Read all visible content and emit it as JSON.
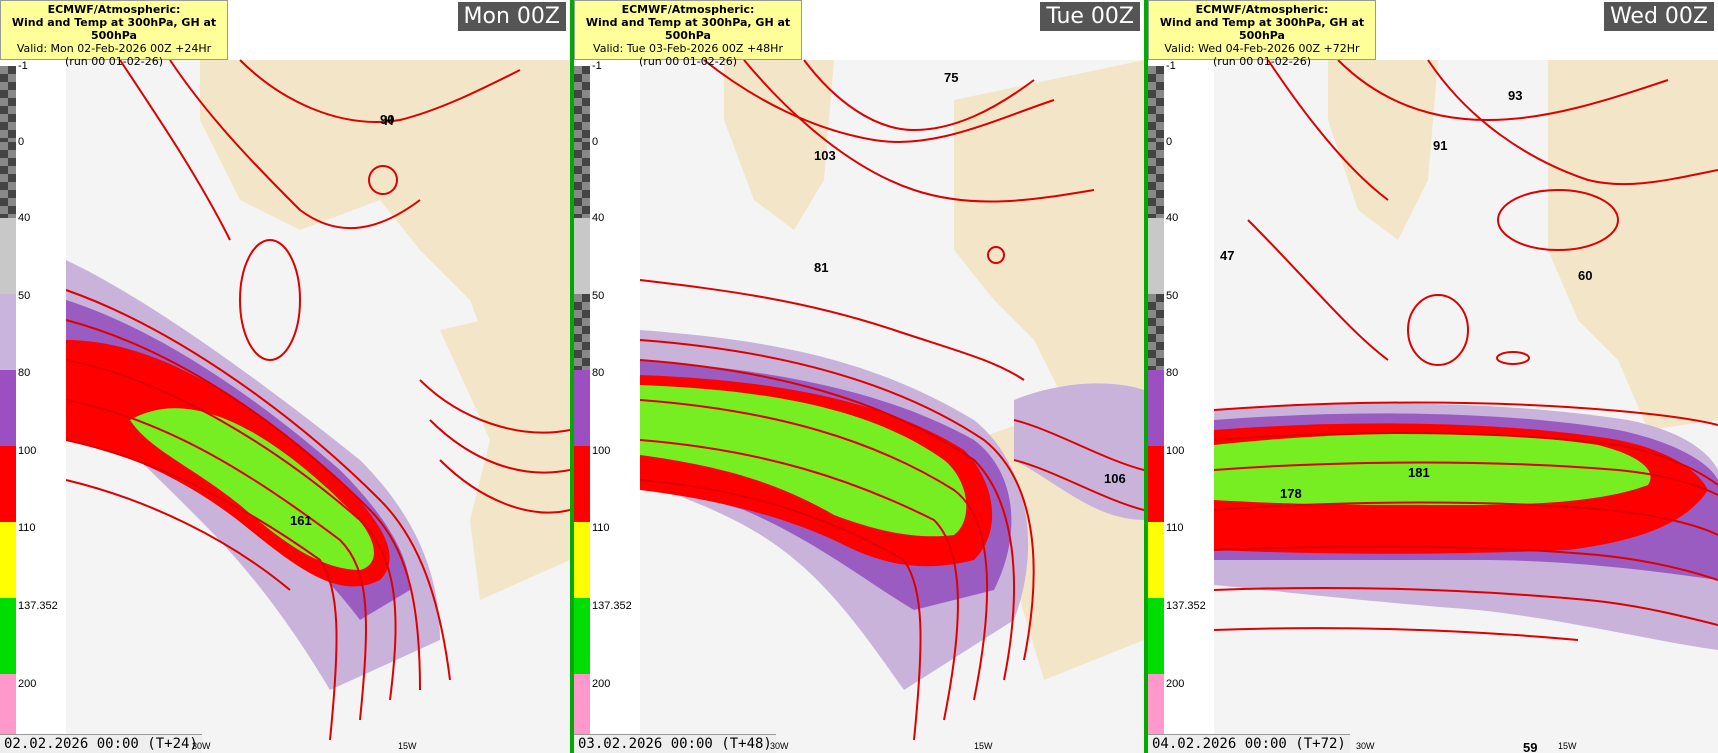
{
  "panels": [
    {
      "title_line1": "ECMWF/Atmospheric:",
      "title_line2": "Wind and Temp at 300hPa, GH at 500hPa",
      "valid": "Valid: Mon 02-Feb-2026 00Z +24Hr",
      "run": "(run 00 01-02-26)",
      "run_label": "Mon 00Z",
      "date_label": "02.02.2026 00:00 (T+24)",
      "lon_labels": [
        "30W",
        "15W"
      ],
      "centers": [
        {
          "type": "H",
          "value": "90"
        },
        {
          "type": "H",
          "value": "161"
        }
      ]
    },
    {
      "title_line1": "ECMWF/Atmospheric:",
      "title_line2": "Wind and Temp at 300hPa, GH at 500hPa",
      "valid": "Valid: Tue 03-Feb-2026 00Z +48Hr",
      "run": "(run 00 01-02-26)",
      "run_label": "Tue 00Z",
      "date_label": "03.02.2026 00:00 (T+48)",
      "lon_labels": [
        "30W",
        "15W"
      ],
      "centers": [
        {
          "type": "H",
          "value": "75"
        },
        {
          "type": "H",
          "value": "103"
        },
        {
          "type": "H",
          "value": "81"
        },
        {
          "type": "H",
          "value": "106"
        }
      ]
    },
    {
      "title_line1": "ECMWF/Atmospheric:",
      "title_line2": "Wind and Temp at 300hPa, GH at 500hPa",
      "valid": "Valid: Wed 04-Feb-2026 00Z +72Hr",
      "run": "(run 00 01-02-26)",
      "run_label": "Wed 00Z",
      "date_label": "04.02.2026 00:00 (T+72)",
      "lon_labels": [
        "30W",
        "15W"
      ],
      "centers": [
        {
          "type": "H",
          "value": "93"
        },
        {
          "type": "H",
          "value": "91"
        },
        {
          "type": "H",
          "value": "47"
        },
        {
          "type": "H",
          "value": "60"
        },
        {
          "type": "H",
          "value": "181"
        },
        {
          "type": "H",
          "value": "178"
        },
        {
          "type": "H",
          "value": "59"
        }
      ]
    }
  ],
  "scale": {
    "ticks": [
      "-1",
      "0",
      "40",
      "50",
      "80",
      "100",
      "110",
      "137.352",
      "200"
    ],
    "colors": [
      "#555555",
      "#555555",
      "#c8c8c8",
      "#c8b4dc",
      "#9b4fc0",
      "#ff0000",
      "#ffff00",
      "#00dd00",
      "#ff99cc"
    ]
  },
  "colors": {
    "jet_purple_light": "#c9b3db",
    "jet_purple": "#9a5cc0",
    "jet_red": "#ff0000",
    "jet_green": "#77ee22",
    "land": "#f3e6c8",
    "contour": "#dd0000",
    "separator": "#00aa00"
  }
}
